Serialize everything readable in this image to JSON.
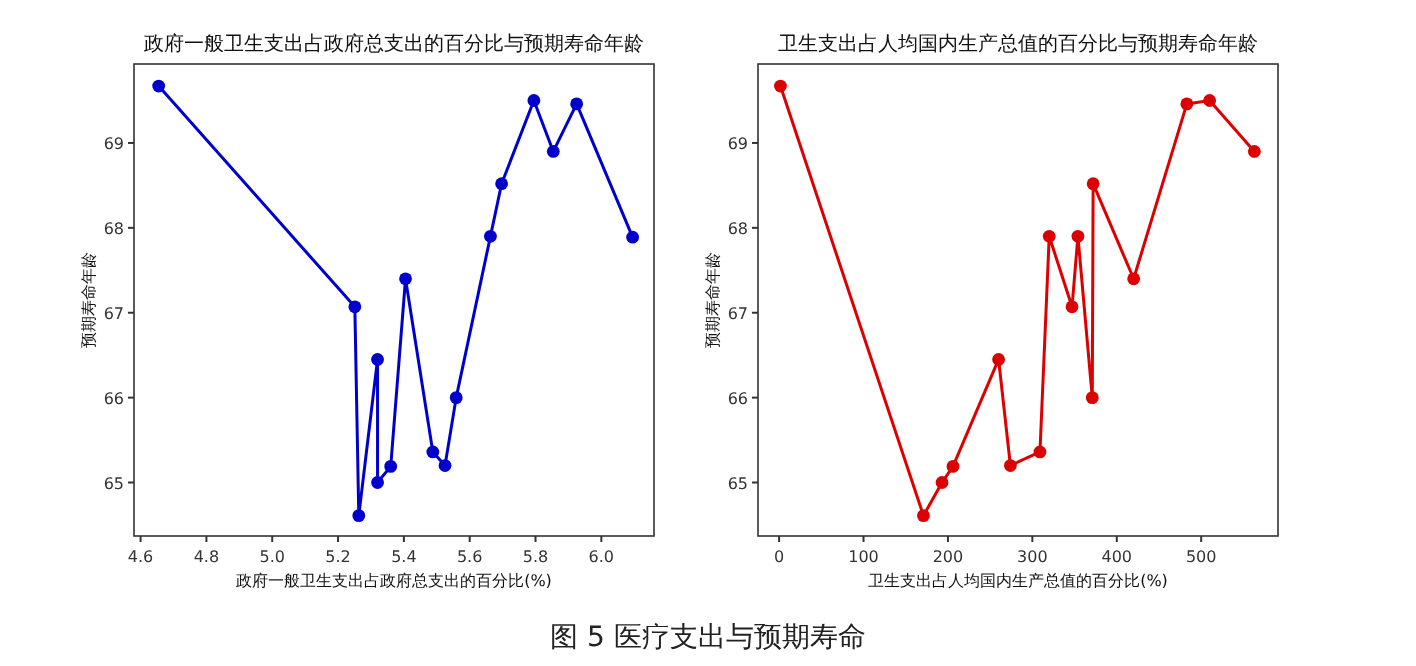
{
  "chart_data": [
    {
      "type": "line",
      "title": "政府一般卫生支出占政府总支出的百分比与预期寿命年龄",
      "xlabel": "政府一般卫生支出占政府总支出的百分比(%)",
      "ylabel": "预期寿命年龄",
      "marker": "circle",
      "grid": false,
      "xlim": [
        4.58,
        6.16
      ],
      "ylim": [
        64.37,
        69.93
      ],
      "xticks": [
        {
          "value": 4.6,
          "label": "4.6"
        },
        {
          "value": 4.8,
          "label": "4.8"
        },
        {
          "value": 5.0,
          "label": "5.0"
        },
        {
          "value": 5.2,
          "label": "5.2"
        },
        {
          "value": 5.4,
          "label": "5.4"
        },
        {
          "value": 5.6,
          "label": "5.6"
        },
        {
          "value": 5.8,
          "label": "5.8"
        },
        {
          "value": 6.0,
          "label": "6.0"
        }
      ],
      "yticks": [
        65,
        66,
        67,
        68,
        69
      ],
      "series": [
        {
          "color": "#0000cc",
          "x": [
            4.655,
            5.251,
            5.263,
            5.32,
            5.32,
            5.36,
            5.405,
            5.488,
            5.525,
            5.559,
            5.663,
            5.697,
            5.795,
            5.854,
            5.925,
            6.095
          ],
          "values": [
            69.67,
            67.07,
            64.61,
            66.45,
            65.0,
            65.19,
            67.4,
            65.36,
            65.2,
            66.0,
            67.9,
            68.52,
            69.5,
            68.9,
            69.46,
            67.89
          ]
        }
      ],
      "annotations": [
        "图 5 医疗支出与预期寿命"
      ]
    },
    {
      "type": "line",
      "title": "卫生支出占人均国内生产总值的百分比与预期寿命年龄",
      "xlabel": "卫生支出占人均国内生产总值的百分比(%)",
      "ylabel": "预期寿命年龄",
      "marker": "circle",
      "grid": false,
      "xlim": [
        -25,
        591
      ],
      "ylim": [
        64.37,
        69.93
      ],
      "xticks": [
        0,
        100,
        200,
        300,
        400,
        500
      ],
      "yticks": [
        65,
        66,
        67,
        68,
        69
      ],
      "series": [
        {
          "color": "#dd0000",
          "x": [
            1.6,
            171,
            193,
            206,
            260,
            274,
            309,
            320,
            347,
            354,
            371,
            372,
            420,
            483,
            510,
            563
          ],
          "values": [
            69.67,
            64.61,
            65.0,
            65.19,
            66.45,
            65.2,
            65.36,
            67.9,
            67.07,
            67.9,
            66.0,
            68.52,
            67.4,
            69.46,
            69.5,
            68.9
          ]
        }
      ]
    }
  ]
}
